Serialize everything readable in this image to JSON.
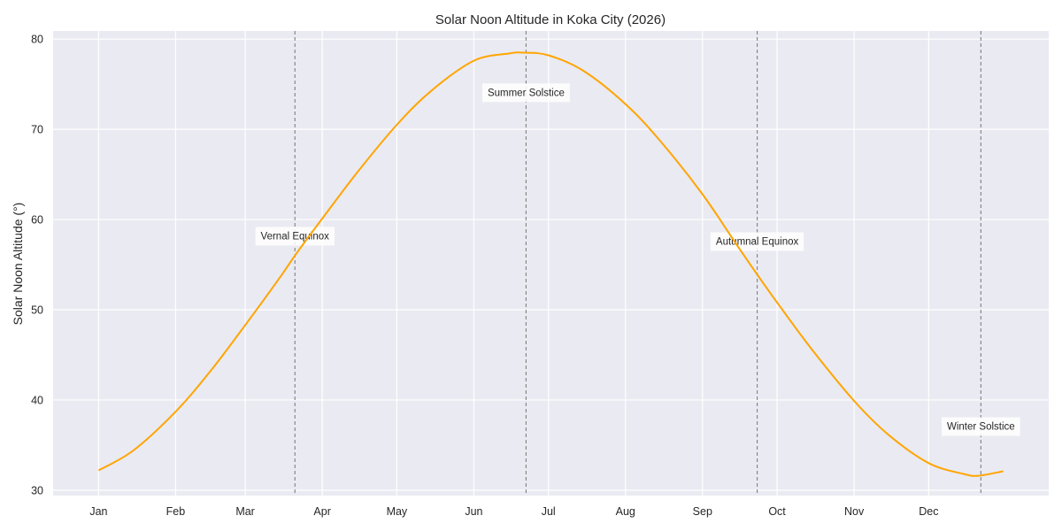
{
  "chart_data": {
    "type": "line",
    "title": "Solar Noon Altitude in Koka City (2026)",
    "xlabel": "",
    "ylabel": "Solar Noon Altitude (°)",
    "x_ticks": [
      "Jan",
      "Feb",
      "Mar",
      "Apr",
      "May",
      "Jun",
      "Jul",
      "Aug",
      "Sep",
      "Oct",
      "Nov",
      "Dec"
    ],
    "x_tick_days": [
      1,
      32,
      60,
      91,
      121,
      152,
      182,
      213,
      244,
      274,
      305,
      335
    ],
    "xlim": [
      -17.3,
      383.3
    ],
    "ylim": [
      29.4,
      80.9
    ],
    "y_ticks": [
      30,
      40,
      50,
      60,
      70,
      80
    ],
    "grid": true,
    "series": [
      {
        "color": "#ffa500",
        "x_day_of_year": [
          1,
          15,
          32,
          46,
          60,
          74,
          81,
          91,
          105,
          121,
          135,
          152,
          166,
          172,
          182,
          196,
          213,
          227,
          244,
          258,
          266,
          274,
          288,
          305,
          319,
          335,
          349,
          355,
          365
        ],
        "y": [
          32.2,
          34.4,
          38.7,
          43.2,
          48.3,
          53.6,
          56.4,
          60.1,
          65.2,
          70.5,
          74.3,
          77.6,
          78.4,
          78.5,
          78.2,
          76.5,
          72.8,
          68.7,
          62.8,
          57.1,
          53.9,
          50.8,
          45.6,
          39.9,
          36.1,
          33.0,
          31.8,
          31.6,
          32.1
        ]
      }
    ],
    "markers": [
      {
        "label": "Vernal Equinox",
        "day": 80,
        "label_y": 58.2
      },
      {
        "label": "Summer Solstice",
        "day": 173,
        "label_y": 74.1
      },
      {
        "label": "Autumnal Equinox",
        "day": 266,
        "label_y": 57.6
      },
      {
        "label": "Winter Solstice",
        "day": 356,
        "label_y": 37.1
      }
    ]
  }
}
